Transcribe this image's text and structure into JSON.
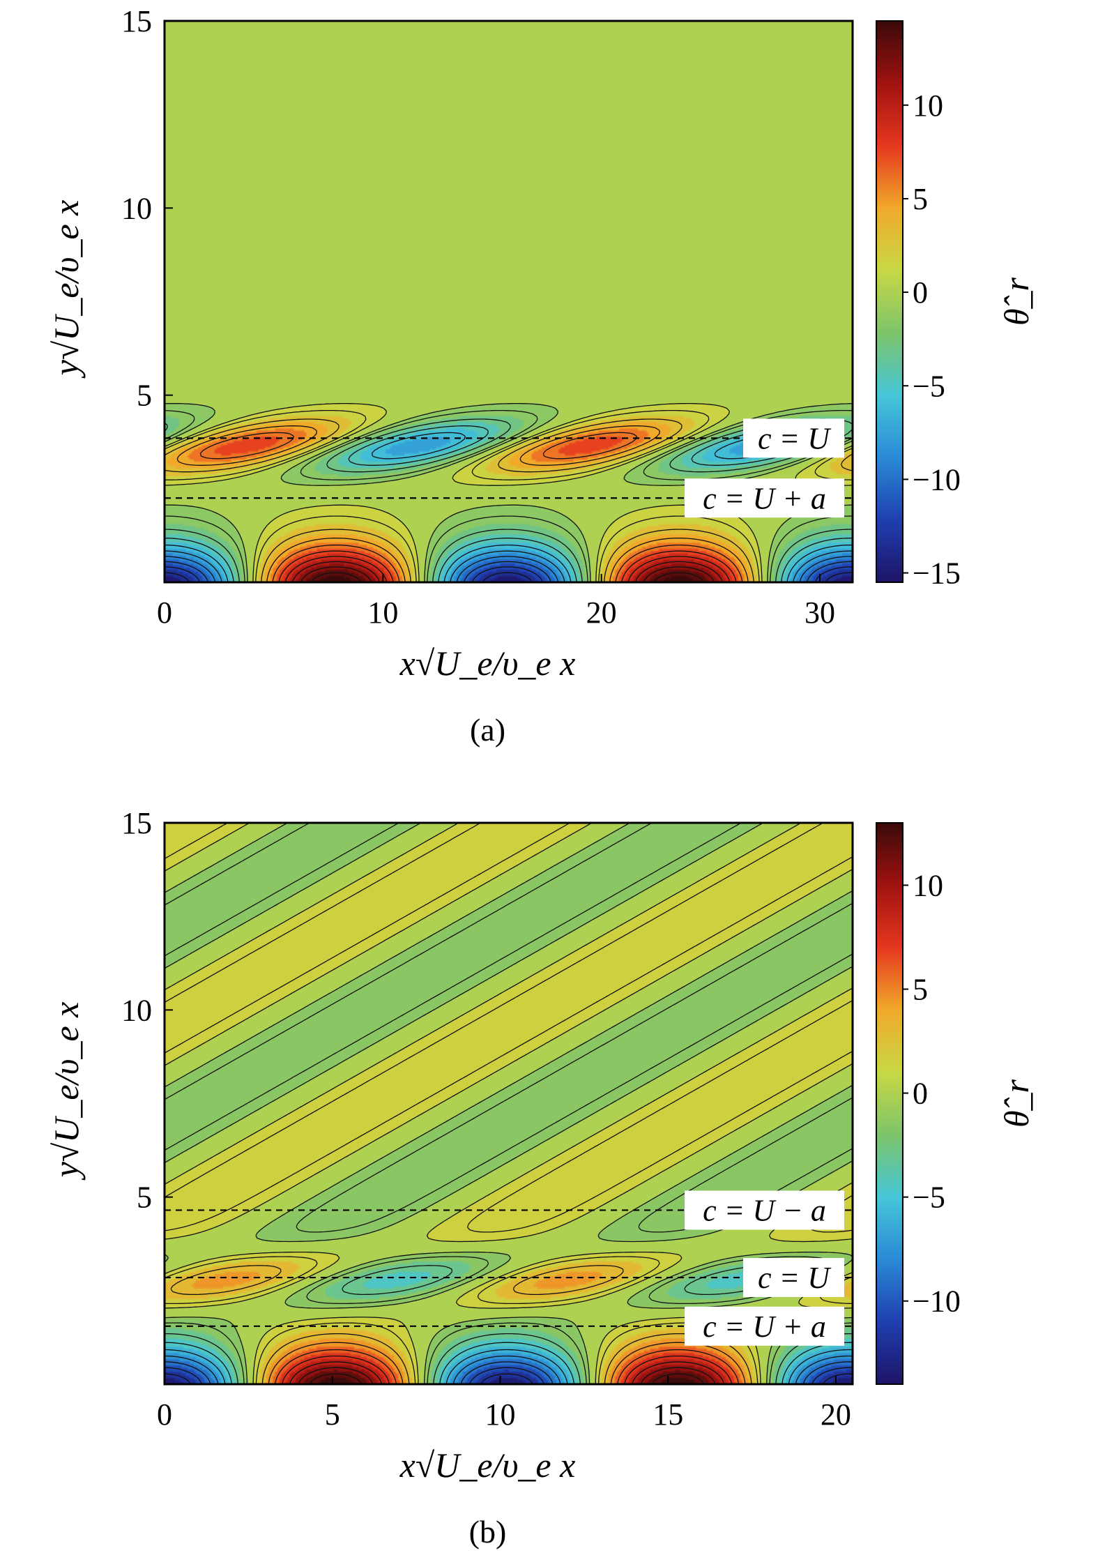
{
  "chart_data": [
    {
      "type": "heatmap",
      "panel_label": "(a)",
      "xlabel": "x√U_e/υ_e x",
      "ylabel": "y√U_e/υ_e x",
      "colorbar_label": "θ̂_r",
      "xlim": [
        0,
        31.5
      ],
      "ylim": [
        0,
        15
      ],
      "x_ticks": [
        0,
        10,
        20,
        30
      ],
      "y_ticks": [
        5,
        10,
        15
      ],
      "colorbar_range": [
        -15.5,
        14.5
      ],
      "colorbar_ticks": [
        -15,
        -10,
        -5,
        0,
        5,
        10
      ],
      "colormap": [
        "#1e1466",
        "#1f3fb0",
        "#2a8ad6",
        "#46c6d8",
        "#7dc46a",
        "#c8d845",
        "#f1a92a",
        "#e5371f",
        "#a01210",
        "#3a0a0a"
      ],
      "wall_wavelength": 15.7,
      "upper_wavelength": 15.7,
      "wall_amplitude": 15,
      "upper_amplitude": 7.5,
      "upper_center_y": 3.65,
      "upper_phase": 0.24,
      "far_field": false,
      "reference_lines": [
        {
          "label": "c = U",
          "y": 3.85
        },
        {
          "label": "c = U + a",
          "y": 2.25
        }
      ]
    },
    {
      "type": "heatmap",
      "panel_label": "(b)",
      "xlabel": "x√U_e/υ_e x",
      "ylabel": "y√U_e/υ_e x",
      "colorbar_label": "θ̂_r",
      "xlim": [
        0,
        20.5
      ],
      "ylim": [
        0,
        15
      ],
      "x_ticks": [
        0,
        5,
        10,
        15,
        20
      ],
      "y_ticks": [
        5,
        10,
        15
      ],
      "colorbar_range": [
        -14,
        13
      ],
      "colorbar_ticks": [
        -10,
        -5,
        0,
        5,
        10
      ],
      "colormap": [
        "#1e1466",
        "#1f3fb0",
        "#2a8ad6",
        "#46c6d8",
        "#7dc46a",
        "#c8d845",
        "#f1a92a",
        "#e5371f",
        "#a01210",
        "#3a0a0a"
      ],
      "wall_wavelength": 10.2,
      "upper_wavelength": 10.2,
      "wall_amplitude": 13.5,
      "upper_amplitude": 4.5,
      "upper_center_y": 2.8,
      "upper_phase": 0.18,
      "far_field": true,
      "reference_lines": [
        {
          "label": "c = U − a",
          "y": 4.65
        },
        {
          "label": "c = U",
          "y": 2.85
        },
        {
          "label": "c = U + a",
          "y": 1.55
        }
      ]
    }
  ]
}
